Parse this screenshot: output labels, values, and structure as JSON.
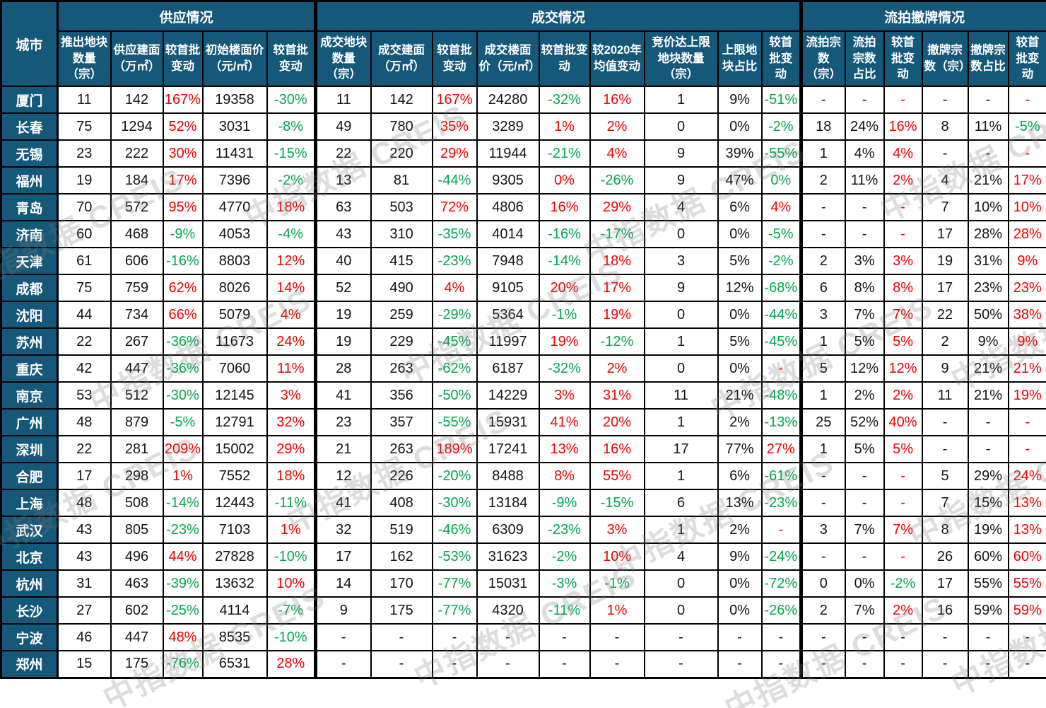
{
  "chart_data": {
    "type": "table",
    "city_column_header": "城市",
    "groups": [
      {
        "label": "供应情况",
        "colspan": 5
      },
      {
        "label": "成交情况",
        "colspan": 9
      },
      {
        "label": "流拍撤牌情况",
        "colspan": 6
      }
    ],
    "columns": [
      "推出地块数量（宗）",
      "供应建面（万㎡）",
      "较首批变动",
      "初始楼面价（元/㎡）",
      "较首批变动",
      "成交地块数量（宗）",
      "成交建面（万㎡）",
      "较首批变动",
      "成交楼面价（元/㎡）",
      "较首批变动",
      "较2020年均值变动",
      "竞价达上限地块数量（宗）",
      "上限地块占比",
      "较首批变动",
      "流拍宗数（宗）",
      "流拍宗数占比",
      "较首批变动",
      "撤牌宗数（宗）",
      "撤牌宗数占比",
      "较首批变动"
    ],
    "rows": [
      {
        "city": "厦门",
        "values": [
          "11",
          "142",
          "167%",
          "19358",
          "-30%",
          "11",
          "142",
          "167%",
          "24280",
          "-32%",
          "16%",
          "1",
          "9%",
          "-51%",
          "-",
          "-",
          "-",
          "-",
          "-",
          "-"
        ],
        "colors": [
          "k",
          "k",
          "r",
          "k",
          "g",
          "k",
          "k",
          "r",
          "k",
          "g",
          "r",
          "k",
          "k",
          "g",
          "k",
          "k",
          "r",
          "k",
          "k",
          "r"
        ]
      },
      {
        "city": "长春",
        "values": [
          "75",
          "1294",
          "52%",
          "3031",
          "-8%",
          "49",
          "780",
          "35%",
          "3289",
          "1%",
          "2%",
          "0",
          "0%",
          "-2%",
          "18",
          "24%",
          "16%",
          "8",
          "11%",
          "-5%"
        ],
        "colors": [
          "k",
          "k",
          "r",
          "k",
          "g",
          "k",
          "k",
          "r",
          "k",
          "r",
          "r",
          "k",
          "k",
          "g",
          "k",
          "k",
          "r",
          "k",
          "k",
          "g"
        ]
      },
      {
        "city": "无锡",
        "values": [
          "23",
          "222",
          "30%",
          "11431",
          "-15%",
          "22",
          "220",
          "29%",
          "11944",
          "-21%",
          "4%",
          "9",
          "39%",
          "-55%",
          "1",
          "4%",
          "4%",
          "-",
          "-",
          "-"
        ],
        "colors": [
          "k",
          "k",
          "r",
          "k",
          "g",
          "k",
          "k",
          "r",
          "k",
          "g",
          "r",
          "k",
          "k",
          "g",
          "k",
          "k",
          "r",
          "k",
          "k",
          "r"
        ]
      },
      {
        "city": "福州",
        "values": [
          "19",
          "184",
          "17%",
          "7396",
          "-2%",
          "13",
          "81",
          "-44%",
          "9305",
          "0%",
          "-26%",
          "9",
          "47%",
          "0%",
          "2",
          "11%",
          "2%",
          "4",
          "21%",
          "17%"
        ],
        "colors": [
          "k",
          "k",
          "r",
          "k",
          "g",
          "k",
          "k",
          "g",
          "k",
          "r",
          "g",
          "k",
          "k",
          "g",
          "k",
          "k",
          "r",
          "k",
          "k",
          "r"
        ]
      },
      {
        "city": "青岛",
        "values": [
          "70",
          "572",
          "95%",
          "4770",
          "18%",
          "63",
          "503",
          "72%",
          "4806",
          "16%",
          "29%",
          "4",
          "6%",
          "4%",
          "-",
          "-",
          "-",
          "7",
          "10%",
          "10%"
        ],
        "colors": [
          "k",
          "k",
          "r",
          "k",
          "r",
          "k",
          "k",
          "r",
          "k",
          "r",
          "r",
          "k",
          "k",
          "r",
          "k",
          "k",
          "r",
          "k",
          "k",
          "r"
        ]
      },
      {
        "city": "济南",
        "values": [
          "60",
          "468",
          "-9%",
          "4053",
          "-4%",
          "43",
          "310",
          "-35%",
          "4014",
          "-16%",
          "-17%",
          "0",
          "0%",
          "-5%",
          "-",
          "-",
          "-",
          "17",
          "28%",
          "28%"
        ],
        "colors": [
          "k",
          "k",
          "g",
          "k",
          "g",
          "k",
          "k",
          "g",
          "k",
          "g",
          "g",
          "k",
          "k",
          "g",
          "k",
          "k",
          "r",
          "k",
          "k",
          "r"
        ]
      },
      {
        "city": "天津",
        "values": [
          "61",
          "606",
          "-16%",
          "8803",
          "12%",
          "40",
          "415",
          "-23%",
          "7948",
          "-14%",
          "18%",
          "3",
          "5%",
          "-2%",
          "2",
          "3%",
          "3%",
          "19",
          "31%",
          "9%"
        ],
        "colors": [
          "k",
          "k",
          "g",
          "k",
          "r",
          "k",
          "k",
          "g",
          "k",
          "g",
          "r",
          "k",
          "k",
          "g",
          "k",
          "k",
          "r",
          "k",
          "k",
          "r"
        ]
      },
      {
        "city": "成都",
        "values": [
          "75",
          "759",
          "62%",
          "8026",
          "14%",
          "52",
          "490",
          "4%",
          "9105",
          "20%",
          "17%",
          "9",
          "12%",
          "-68%",
          "6",
          "8%",
          "8%",
          "17",
          "23%",
          "23%"
        ],
        "colors": [
          "k",
          "k",
          "r",
          "k",
          "r",
          "k",
          "k",
          "r",
          "k",
          "r",
          "r",
          "k",
          "k",
          "g",
          "k",
          "k",
          "r",
          "k",
          "k",
          "r"
        ]
      },
      {
        "city": "沈阳",
        "values": [
          "44",
          "734",
          "66%",
          "5079",
          "4%",
          "19",
          "259",
          "-29%",
          "5364",
          "-1%",
          "19%",
          "0",
          "0%",
          "-44%",
          "3",
          "7%",
          "7%",
          "22",
          "50%",
          "38%"
        ],
        "colors": [
          "k",
          "k",
          "r",
          "k",
          "r",
          "k",
          "k",
          "g",
          "k",
          "g",
          "r",
          "k",
          "k",
          "g",
          "k",
          "k",
          "r",
          "k",
          "k",
          "r"
        ]
      },
      {
        "city": "苏州",
        "values": [
          "22",
          "267",
          "-36%",
          "11673",
          "24%",
          "19",
          "229",
          "-45%",
          "11997",
          "19%",
          "-12%",
          "1",
          "5%",
          "-45%",
          "1",
          "5%",
          "5%",
          "2",
          "9%",
          "9%"
        ],
        "colors": [
          "k",
          "k",
          "g",
          "k",
          "r",
          "k",
          "k",
          "g",
          "k",
          "r",
          "g",
          "k",
          "k",
          "g",
          "k",
          "k",
          "r",
          "k",
          "k",
          "r"
        ]
      },
      {
        "city": "重庆",
        "values": [
          "42",
          "447",
          "-36%",
          "7060",
          "11%",
          "28",
          "263",
          "-62%",
          "6187",
          "-32%",
          "2%",
          "0",
          "0%",
          "-",
          "5",
          "12%",
          "12%",
          "9",
          "21%",
          "21%"
        ],
        "colors": [
          "k",
          "k",
          "g",
          "k",
          "r",
          "k",
          "k",
          "g",
          "k",
          "g",
          "r",
          "k",
          "k",
          "r",
          "k",
          "k",
          "r",
          "k",
          "k",
          "r"
        ]
      },
      {
        "city": "南京",
        "values": [
          "53",
          "512",
          "-30%",
          "12145",
          "3%",
          "41",
          "356",
          "-50%",
          "14229",
          "3%",
          "31%",
          "11",
          "21%",
          "-48%",
          "1",
          "2%",
          "2%",
          "11",
          "21%",
          "19%"
        ],
        "colors": [
          "k",
          "k",
          "g",
          "k",
          "r",
          "k",
          "k",
          "g",
          "k",
          "r",
          "r",
          "k",
          "k",
          "g",
          "k",
          "k",
          "r",
          "k",
          "k",
          "r"
        ]
      },
      {
        "city": "广州",
        "values": [
          "48",
          "879",
          "-5%",
          "12791",
          "32%",
          "23",
          "357",
          "-55%",
          "15931",
          "41%",
          "20%",
          "1",
          "2%",
          "-13%",
          "25",
          "52%",
          "40%",
          "-",
          "-",
          "-"
        ],
        "colors": [
          "k",
          "k",
          "g",
          "k",
          "r",
          "k",
          "k",
          "g",
          "k",
          "r",
          "r",
          "k",
          "k",
          "g",
          "k",
          "k",
          "r",
          "k",
          "k",
          "r"
        ]
      },
      {
        "city": "深圳",
        "values": [
          "22",
          "281",
          "209%",
          "15002",
          "29%",
          "21",
          "263",
          "189%",
          "17241",
          "13%",
          "16%",
          "17",
          "77%",
          "27%",
          "1",
          "5%",
          "5%",
          "-",
          "-",
          "-"
        ],
        "colors": [
          "k",
          "k",
          "r",
          "k",
          "r",
          "k",
          "k",
          "r",
          "k",
          "r",
          "r",
          "k",
          "k",
          "r",
          "k",
          "k",
          "r",
          "k",
          "k",
          "r"
        ]
      },
      {
        "city": "合肥",
        "values": [
          "17",
          "298",
          "1%",
          "7552",
          "18%",
          "12",
          "226",
          "-20%",
          "8488",
          "8%",
          "55%",
          "1",
          "6%",
          "-61%",
          "-",
          "-",
          "-",
          "5",
          "29%",
          "24%"
        ],
        "colors": [
          "k",
          "k",
          "r",
          "k",
          "r",
          "k",
          "k",
          "g",
          "k",
          "r",
          "r",
          "k",
          "k",
          "g",
          "k",
          "k",
          "r",
          "k",
          "k",
          "r"
        ]
      },
      {
        "city": "上海",
        "values": [
          "48",
          "508",
          "-14%",
          "12443",
          "-11%",
          "41",
          "408",
          "-30%",
          "13184",
          "-9%",
          "-15%",
          "6",
          "13%",
          "-23%",
          "-",
          "-",
          "-",
          "7",
          "15%",
          "13%"
        ],
        "colors": [
          "k",
          "k",
          "g",
          "k",
          "g",
          "k",
          "k",
          "g",
          "k",
          "g",
          "g",
          "k",
          "k",
          "g",
          "k",
          "k",
          "r",
          "k",
          "k",
          "r"
        ]
      },
      {
        "city": "武汉",
        "values": [
          "43",
          "805",
          "-23%",
          "7103",
          "1%",
          "32",
          "519",
          "-46%",
          "6309",
          "-23%",
          "3%",
          "1",
          "2%",
          "-",
          "3",
          "7%",
          "7%",
          "8",
          "19%",
          "13%"
        ],
        "colors": [
          "k",
          "k",
          "g",
          "k",
          "r",
          "k",
          "k",
          "g",
          "k",
          "g",
          "r",
          "k",
          "k",
          "r",
          "k",
          "k",
          "r",
          "k",
          "k",
          "r"
        ]
      },
      {
        "city": "北京",
        "values": [
          "43",
          "496",
          "44%",
          "27828",
          "-10%",
          "17",
          "162",
          "-53%",
          "31623",
          "-2%",
          "10%",
          "4",
          "9%",
          "-24%",
          "-",
          "-",
          "-",
          "26",
          "60%",
          "60%"
        ],
        "colors": [
          "k",
          "k",
          "r",
          "k",
          "g",
          "k",
          "k",
          "g",
          "k",
          "g",
          "r",
          "k",
          "k",
          "g",
          "k",
          "k",
          "r",
          "k",
          "k",
          "r"
        ]
      },
      {
        "city": "杭州",
        "values": [
          "31",
          "463",
          "-39%",
          "13632",
          "10%",
          "14",
          "170",
          "-77%",
          "15031",
          "-3%",
          "-1%",
          "0",
          "0%",
          "-72%",
          "0",
          "0%",
          "-2%",
          "17",
          "55%",
          "55%"
        ],
        "colors": [
          "k",
          "k",
          "g",
          "k",
          "r",
          "k",
          "k",
          "g",
          "k",
          "g",
          "g",
          "k",
          "k",
          "g",
          "k",
          "k",
          "g",
          "k",
          "k",
          "r"
        ]
      },
      {
        "city": "长沙",
        "values": [
          "27",
          "602",
          "-25%",
          "4114",
          "-7%",
          "9",
          "175",
          "-77%",
          "4320",
          "-11%",
          "1%",
          "0",
          "0%",
          "-26%",
          "2",
          "7%",
          "2%",
          "16",
          "59%",
          "59%"
        ],
        "colors": [
          "k",
          "k",
          "g",
          "k",
          "g",
          "k",
          "k",
          "g",
          "k",
          "g",
          "r",
          "k",
          "k",
          "g",
          "k",
          "k",
          "r",
          "k",
          "k",
          "r"
        ]
      },
      {
        "city": "宁波",
        "values": [
          "46",
          "447",
          "48%",
          "8535",
          "-10%",
          "-",
          "-",
          "-",
          "-",
          "-",
          "-",
          "-",
          "-",
          "-",
          "-",
          "-",
          "-",
          "-",
          "-",
          "-"
        ],
        "colors": [
          "k",
          "k",
          "r",
          "k",
          "g",
          "k",
          "k",
          "k",
          "k",
          "k",
          "k",
          "k",
          "k",
          "k",
          "k",
          "k",
          "k",
          "k",
          "k",
          "k"
        ]
      },
      {
        "city": "郑州",
        "values": [
          "15",
          "175",
          "-76%",
          "6531",
          "28%",
          "-",
          "-",
          "-",
          "-",
          "-",
          "-",
          "-",
          "-",
          "-",
          "-",
          "-",
          "-",
          "-",
          "-",
          "-"
        ],
        "colors": [
          "k",
          "k",
          "g",
          "k",
          "r",
          "k",
          "k",
          "k",
          "k",
          "k",
          "k",
          "k",
          "k",
          "k",
          "k",
          "k",
          "k",
          "k",
          "k",
          "k"
        ]
      }
    ],
    "colors": {
      "header_bg": "#15587a",
      "increase_red": "#f20000",
      "decrease_green": "#00a84f",
      "border": "#000000"
    }
  },
  "watermark": {
    "text": "中指数据 CREIS"
  }
}
